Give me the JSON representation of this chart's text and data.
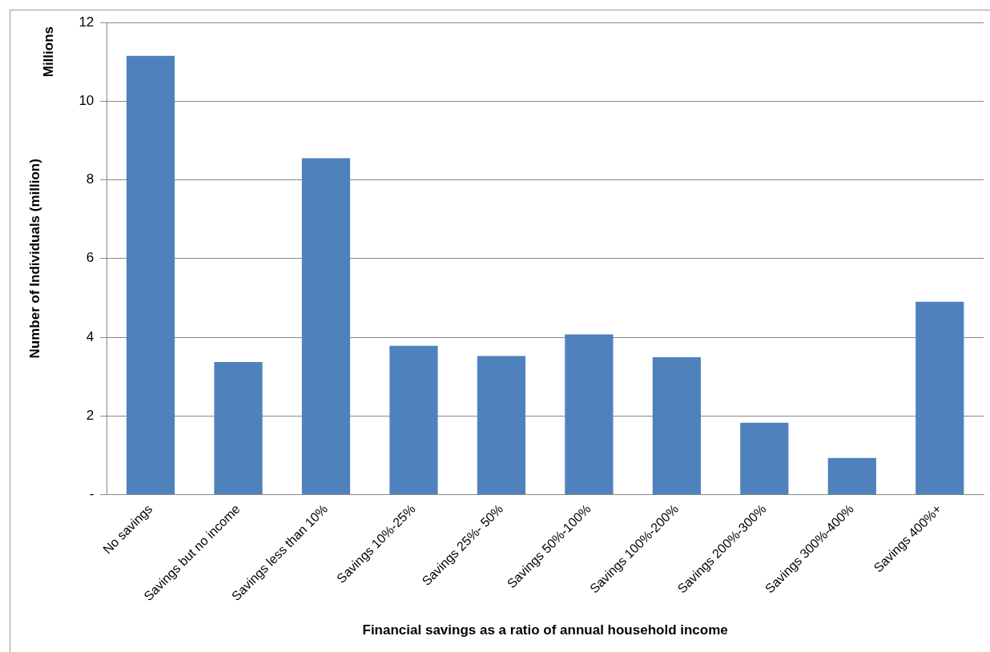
{
  "chart_data": {
    "type": "bar",
    "xlabel": "Financial savings as a ratio of annual household income",
    "ylabel": "Number of Individuals (million)",
    "annotations": [
      "Millions"
    ],
    "categories": [
      "No savings",
      "Savings but no income",
      "Savings less than 10%",
      "Savings 10%-25%",
      "Savings 25%- 50%",
      "Savings 50%-100%",
      "Savings 100%-200%",
      "Savings 200%-300%",
      "Savings 300%-400%",
      "Savings 400%+"
    ],
    "values": [
      11.15,
      3.37,
      8.55,
      3.78,
      3.52,
      4.07,
      3.49,
      1.83,
      0.93,
      4.9
    ],
    "color": "#4f81bd",
    "ylim": [
      0,
      12
    ],
    "yticks": [
      {
        "value": 0,
        "label": "-"
      },
      2,
      4,
      6,
      8,
      10,
      12
    ],
    "grid": "y",
    "legend": false
  }
}
